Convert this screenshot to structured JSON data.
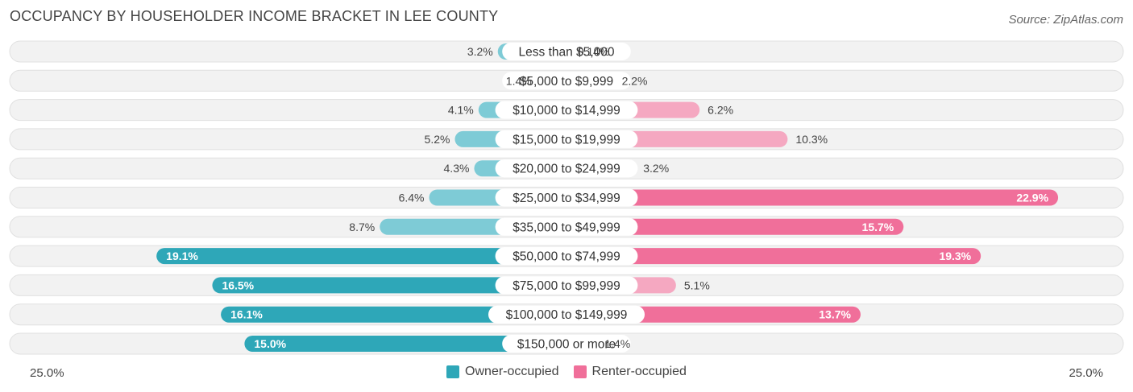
{
  "title": "OCCUPANCY BY HOUSEHOLDER INCOME BRACKET IN LEE COUNTY",
  "source": "Source: ZipAtlas.com",
  "colors": {
    "owner_light": "#7ecbd6",
    "owner_dark": "#2ea7b8",
    "renter_light": "#f5a8c1",
    "renter_dark": "#f06f9a",
    "track": "#eeeeee"
  },
  "legend": {
    "owner": "Owner-occupied",
    "renter": "Renter-occupied"
  },
  "axis": {
    "left_label": "25.0%",
    "right_label": "25.0%"
  },
  "chart_data": {
    "type": "bar",
    "orientation": "horizontal-diverging",
    "title": "OCCUPANCY BY HOUSEHOLDER INCOME BRACKET IN LEE COUNTY",
    "xlim": [
      -25.0,
      25.0
    ],
    "categories": [
      "Less than $5,000",
      "$5,000 to $9,999",
      "$10,000 to $14,999",
      "$15,000 to $19,999",
      "$20,000 to $24,999",
      "$25,000 to $34,999",
      "$35,000 to $49,999",
      "$50,000 to $74,999",
      "$75,000 to $99,999",
      "$100,000 to $149,999",
      "$150,000 or more"
    ],
    "series": [
      {
        "name": "Owner-occupied",
        "values": [
          3.2,
          1.4,
          4.1,
          5.2,
          4.3,
          6.4,
          8.7,
          19.1,
          16.5,
          16.1,
          15.0
        ],
        "labels": [
          "3.2%",
          "1.4%",
          "4.1%",
          "5.2%",
          "4.3%",
          "6.4%",
          "8.7%",
          "19.1%",
          "16.5%",
          "16.1%",
          "15.0%"
        ]
      },
      {
        "name": "Renter-occupied",
        "values": [
          0.14,
          2.2,
          6.2,
          10.3,
          3.2,
          22.9,
          15.7,
          19.3,
          5.1,
          13.7,
          1.4
        ],
        "labels": [
          "0.14%",
          "2.2%",
          "6.2%",
          "10.3%",
          "3.2%",
          "22.9%",
          "15.7%",
          "19.3%",
          "5.1%",
          "13.7%",
          "1.4%"
        ]
      }
    ],
    "legend_position": "bottom-center"
  }
}
